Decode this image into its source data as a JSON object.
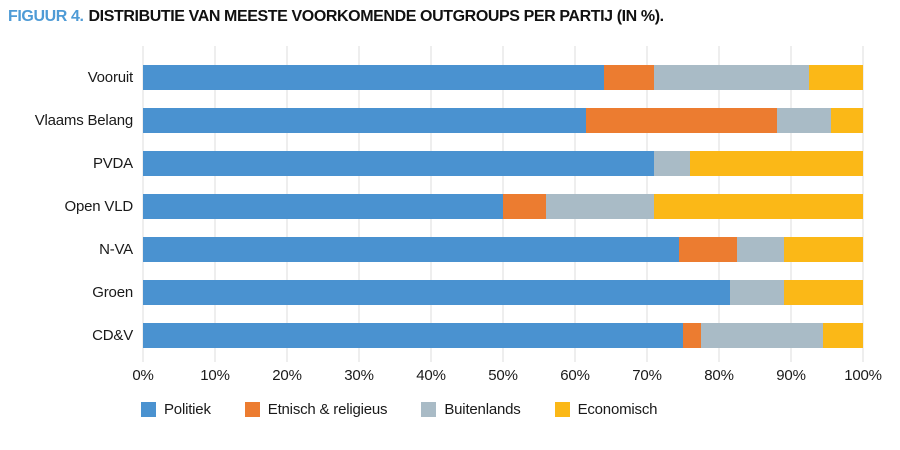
{
  "chart_data": {
    "type": "bar",
    "orientation": "horizontal-stacked",
    "title_prefix": "FIGUUR 4.",
    "title": "DISTRIBUTIE VAN MEESTE VOORKOMENDE OUTGROUPS PER PARTIJ (IN %).",
    "title_accent_color": "#4E9BD6",
    "categories": [
      "Vooruit",
      "Vlaams Belang",
      "PVDA",
      "Open VLD",
      "N-VA",
      "Groen",
      "CD&V"
    ],
    "series": [
      {
        "name": "Politiek",
        "color": "#4A92D0",
        "values": [
          64,
          61.5,
          71,
          50,
          74.5,
          81.5,
          75
        ]
      },
      {
        "name": "Etnisch & religieus",
        "color": "#EC7C30",
        "values": [
          7,
          26.5,
          0,
          6,
          8,
          0,
          2.5
        ]
      },
      {
        "name": "Buitenlands",
        "color": "#A9BBC6",
        "values": [
          21.5,
          7.5,
          5,
          15,
          6.5,
          7.5,
          17
        ]
      },
      {
        "name": "Economisch",
        "color": "#FBB817",
        "values": [
          7.5,
          4.5,
          24,
          29,
          11,
          11,
          5.5
        ]
      }
    ],
    "x_ticks": [
      "0%",
      "10%",
      "20%",
      "30%",
      "40%",
      "50%",
      "60%",
      "70%",
      "80%",
      "90%",
      "100%"
    ],
    "xlim": [
      0,
      100
    ],
    "grid": "vertical",
    "gridline_color": "#dcdcdc",
    "legend_position": "bottom"
  }
}
